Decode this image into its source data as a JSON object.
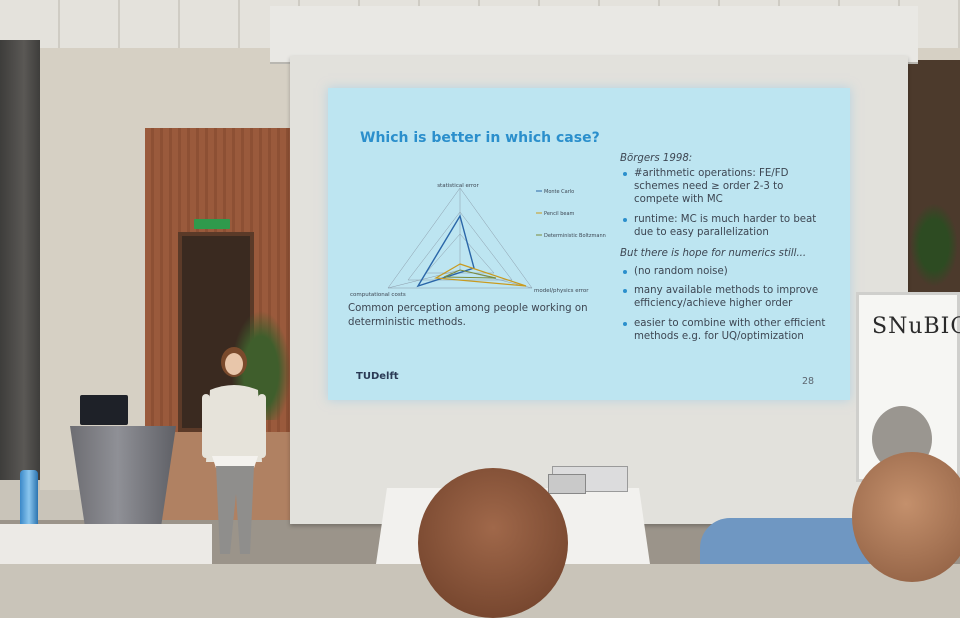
{
  "slide": {
    "title": "Which is better in which case?",
    "chart": {
      "axes": [
        "statistical error",
        "model/physics error",
        "computational costs"
      ],
      "legend": [
        "Monte Carlo",
        "Pencil beam",
        "Deterministic Boltzmann"
      ]
    },
    "caption_lines": [
      "Common perception among people working on",
      "deterministic methods."
    ],
    "right_heading": "Börgers 1998:",
    "bullets_1": [
      [
        "#arithmetic operations: FE/FD",
        "schemes need ≥ order 2-3 to",
        "compete with MC"
      ],
      [
        "runtime: MC is much harder to beat",
        "due to easy parallelization"
      ]
    ],
    "right_heading_2": "But there is hope for numerics still...",
    "bullets_2": [
      [
        "(no random noise)"
      ],
      [
        "many available methods to improve",
        "efficiency/achieve higher order"
      ],
      [
        "easier to combine with other efficient",
        "methods e.g. for UQ/optimization"
      ]
    ],
    "logo": "TUDelft",
    "page_number": "28"
  },
  "whiteboard": {
    "text": "SNuBIC"
  },
  "colors": {
    "slide_bg": "#bde5f1",
    "title": "#2b8fcc",
    "text": "#3d4652"
  }
}
